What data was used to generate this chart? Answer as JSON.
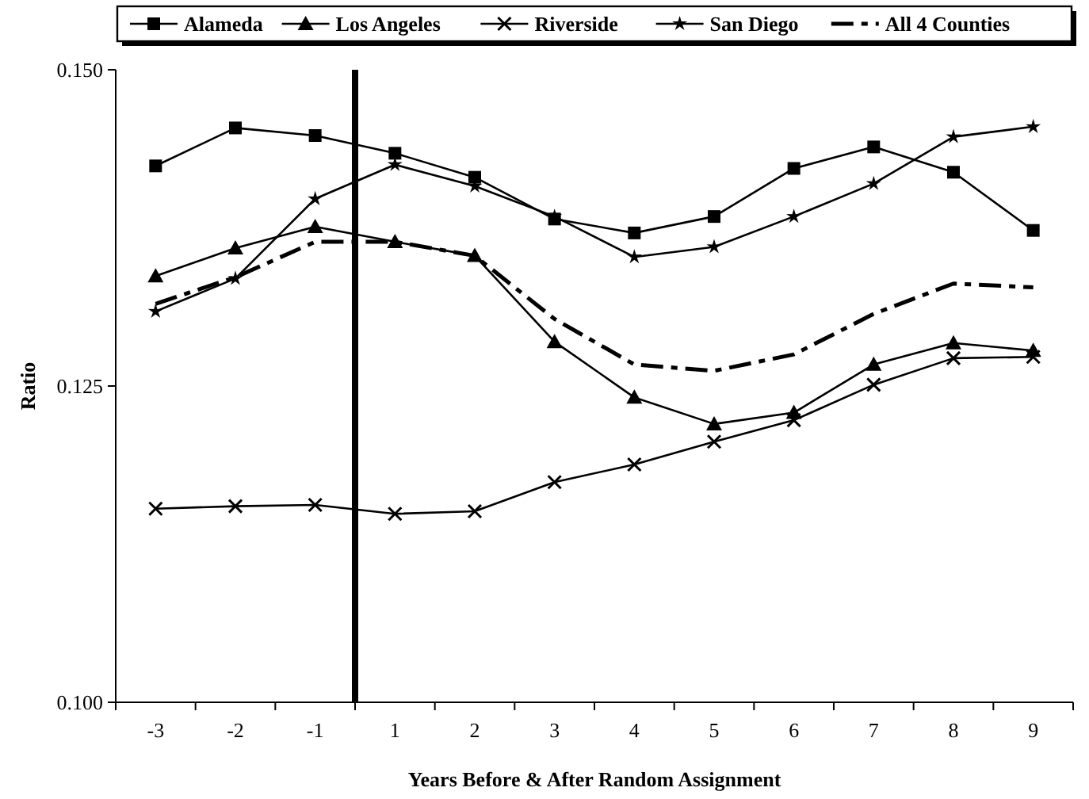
{
  "chart_data": {
    "type": "line",
    "xlabel": "Years Before & After Random Assignment",
    "ylabel": "Ratio",
    "categories": [
      "-3",
      "-2",
      "-1",
      "1",
      "2",
      "3",
      "4",
      "5",
      "6",
      "7",
      "8",
      "9"
    ],
    "series": [
      {
        "name": "Alameda",
        "color": "#000000",
        "marker": "square",
        "values": [
          0.1424,
          0.1454,
          0.1448,
          0.1434,
          0.1415,
          0.1382,
          0.1371,
          0.1384,
          0.1422,
          0.1439,
          0.1419,
          0.1373
        ]
      },
      {
        "name": "Los Angeles",
        "color": "#000000",
        "marker": "triangle",
        "values": [
          0.1337,
          0.1359,
          0.1376,
          0.1364,
          0.1353,
          0.1285,
          0.1241,
          0.122,
          0.1229,
          0.1267,
          0.1284,
          0.1278
        ]
      },
      {
        "name": "Riverside",
        "color": "#000000",
        "marker": "cross",
        "values": [
          0.1153,
          0.1155,
          0.1156,
          0.1149,
          0.1151,
          0.1174,
          0.1188,
          0.1206,
          0.1223,
          0.1251,
          0.1272,
          0.1273
        ]
      },
      {
        "name": "San Diego",
        "color": "#000000",
        "marker": "star",
        "values": [
          0.1309,
          0.1335,
          0.1398,
          0.1425,
          0.1408,
          0.1384,
          0.1352,
          0.136,
          0.1384,
          0.141,
          0.1447,
          0.1455
        ]
      },
      {
        "name": "All 4 Counties",
        "color": "#000000",
        "marker": "none",
        "line_style": "dashed",
        "values": [
          0.1315,
          0.1336,
          0.1364,
          0.1364,
          0.1353,
          0.1303,
          0.1267,
          0.1262,
          0.1275,
          0.1307,
          0.1331,
          0.1328
        ]
      }
    ],
    "ylim": [
      0.1,
      0.15
    ],
    "yticks": [
      {
        "value": 0.1,
        "label": "0.100"
      },
      {
        "value": 0.125,
        "label": "0.125"
      },
      {
        "value": 0.15,
        "label": "0.150"
      }
    ],
    "legend": "top",
    "grid": false
  }
}
